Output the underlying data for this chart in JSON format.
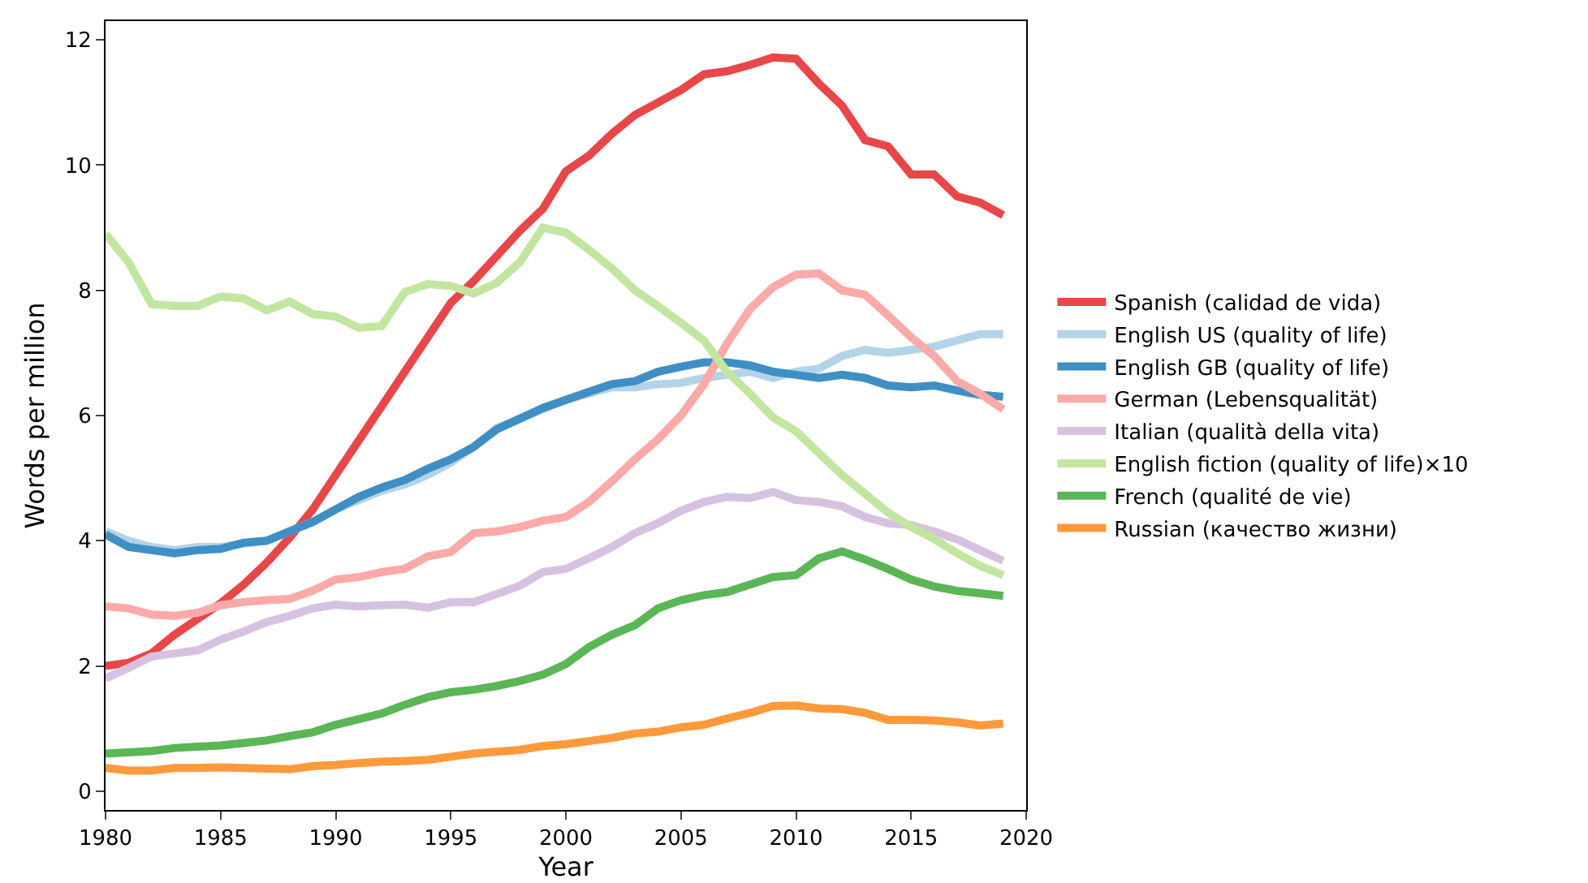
{
  "chart_data": {
    "type": "line",
    "xlabel": "Year",
    "ylabel": "Words per million",
    "x": [
      1980,
      1981,
      1982,
      1983,
      1984,
      1985,
      1986,
      1987,
      1988,
      1989,
      1990,
      1991,
      1992,
      1993,
      1994,
      1995,
      1996,
      1997,
      1998,
      1999,
      2000,
      2001,
      2002,
      2003,
      2004,
      2005,
      2006,
      2007,
      2008,
      2009,
      2010,
      2011,
      2012,
      2013,
      2014,
      2015,
      2016,
      2017,
      2018,
      2019
    ],
    "xlim": [
      1980,
      2020
    ],
    "xticks": [
      1980,
      1985,
      1990,
      1995,
      2000,
      2005,
      2010,
      2015,
      2020
    ],
    "ylim": [
      -0.3,
      12.3
    ],
    "yticks": [
      0,
      2,
      4,
      6,
      8,
      10,
      12
    ],
    "grid": false,
    "legend": "right",
    "marker": "none",
    "line_style": "solid",
    "series": [
      {
        "name": "Spanish (calidad de vida)",
        "color": "#e8474a",
        "values": [
          2.0,
          2.05,
          2.2,
          2.5,
          2.75,
          3.0,
          3.3,
          3.65,
          4.05,
          4.5,
          5.05,
          5.6,
          6.15,
          6.7,
          7.25,
          7.8,
          8.15,
          8.55,
          8.95,
          9.3,
          9.9,
          10.15,
          10.5,
          10.8,
          11.0,
          11.2,
          11.45,
          11.5,
          11.6,
          11.72,
          11.7,
          11.3,
          10.95,
          10.4,
          10.3,
          9.85,
          9.85,
          9.5,
          9.4,
          9.2
        ]
      },
      {
        "name": "English US (quality of life)",
        "color": "#b3d4e8",
        "values": [
          4.15,
          4.0,
          3.9,
          3.85,
          3.9,
          3.9,
          3.95,
          4.0,
          4.15,
          4.3,
          4.5,
          4.65,
          4.8,
          4.9,
          5.05,
          5.25,
          5.5,
          5.8,
          5.95,
          6.1,
          6.25,
          6.35,
          6.45,
          6.45,
          6.5,
          6.52,
          6.6,
          6.65,
          6.7,
          6.6,
          6.7,
          6.75,
          6.95,
          7.05,
          7.0,
          7.05,
          7.1,
          7.2,
          7.3,
          7.3
        ]
      },
      {
        "name": "English GB (quality of life)",
        "color": "#3f8fc5",
        "values": [
          4.1,
          3.9,
          3.85,
          3.8,
          3.85,
          3.87,
          3.97,
          4.0,
          4.15,
          4.3,
          4.5,
          4.7,
          4.85,
          4.97,
          5.15,
          5.3,
          5.5,
          5.78,
          5.95,
          6.12,
          6.25,
          6.38,
          6.5,
          6.55,
          6.7,
          6.78,
          6.85,
          6.85,
          6.8,
          6.7,
          6.65,
          6.6,
          6.65,
          6.6,
          6.48,
          6.45,
          6.48,
          6.4,
          6.33,
          6.3
        ]
      },
      {
        "name": "German (Lebensqualität)",
        "color": "#fbaaa9",
        "values": [
          2.95,
          2.92,
          2.82,
          2.8,
          2.85,
          2.97,
          3.02,
          3.05,
          3.07,
          3.2,
          3.38,
          3.42,
          3.5,
          3.55,
          3.75,
          3.82,
          4.12,
          4.15,
          4.22,
          4.32,
          4.38,
          4.62,
          4.95,
          5.3,
          5.62,
          6.0,
          6.5,
          7.15,
          7.7,
          8.05,
          8.25,
          8.27,
          8.0,
          7.93,
          7.6,
          7.25,
          6.95,
          6.55,
          6.35,
          6.1
        ]
      },
      {
        "name": "Italian (qualità della vita)",
        "color": "#d6c2e0",
        "values": [
          1.8,
          1.97,
          2.15,
          2.2,
          2.25,
          2.42,
          2.55,
          2.7,
          2.8,
          2.92,
          2.98,
          2.95,
          2.97,
          2.98,
          2.93,
          3.02,
          3.02,
          3.15,
          3.28,
          3.5,
          3.55,
          3.72,
          3.9,
          4.12,
          4.28,
          4.48,
          4.62,
          4.7,
          4.68,
          4.78,
          4.65,
          4.62,
          4.55,
          4.38,
          4.28,
          4.25,
          4.15,
          4.02,
          3.85,
          3.68
        ]
      },
      {
        "name": "English fiction (quality of life)×10",
        "color": "#c2e6a0",
        "values": [
          8.9,
          8.45,
          7.78,
          7.75,
          7.75,
          7.9,
          7.87,
          7.68,
          7.82,
          7.62,
          7.58,
          7.4,
          7.43,
          7.97,
          8.1,
          8.07,
          7.95,
          8.12,
          8.45,
          9.0,
          8.92,
          8.65,
          8.35,
          8.0,
          7.75,
          7.48,
          7.2,
          6.7,
          6.35,
          5.97,
          5.75,
          5.4,
          5.05,
          4.75,
          4.45,
          4.22,
          4.03,
          3.8,
          3.6,
          3.45
        ]
      },
      {
        "name": "French (qualité de vie)",
        "color": "#5bb656",
        "values": [
          0.6,
          0.62,
          0.64,
          0.69,
          0.71,
          0.73,
          0.77,
          0.81,
          0.88,
          0.94,
          1.06,
          1.15,
          1.24,
          1.38,
          1.5,
          1.58,
          1.62,
          1.68,
          1.76,
          1.86,
          2.03,
          2.3,
          2.5,
          2.65,
          2.92,
          3.05,
          3.13,
          3.18,
          3.3,
          3.42,
          3.45,
          3.72,
          3.83,
          3.7,
          3.55,
          3.38,
          3.27,
          3.2,
          3.16,
          3.12
        ]
      },
      {
        "name": "Russian (качество жизни)",
        "color": "#fe9a3b",
        "values": [
          0.37,
          0.33,
          0.33,
          0.37,
          0.37,
          0.38,
          0.37,
          0.36,
          0.35,
          0.4,
          0.42,
          0.45,
          0.47,
          0.48,
          0.5,
          0.55,
          0.6,
          0.63,
          0.66,
          0.72,
          0.75,
          0.8,
          0.85,
          0.92,
          0.95,
          1.02,
          1.06,
          1.16,
          1.25,
          1.36,
          1.37,
          1.32,
          1.31,
          1.25,
          1.14,
          1.14,
          1.13,
          1.1,
          1.05,
          1.08
        ]
      }
    ]
  }
}
